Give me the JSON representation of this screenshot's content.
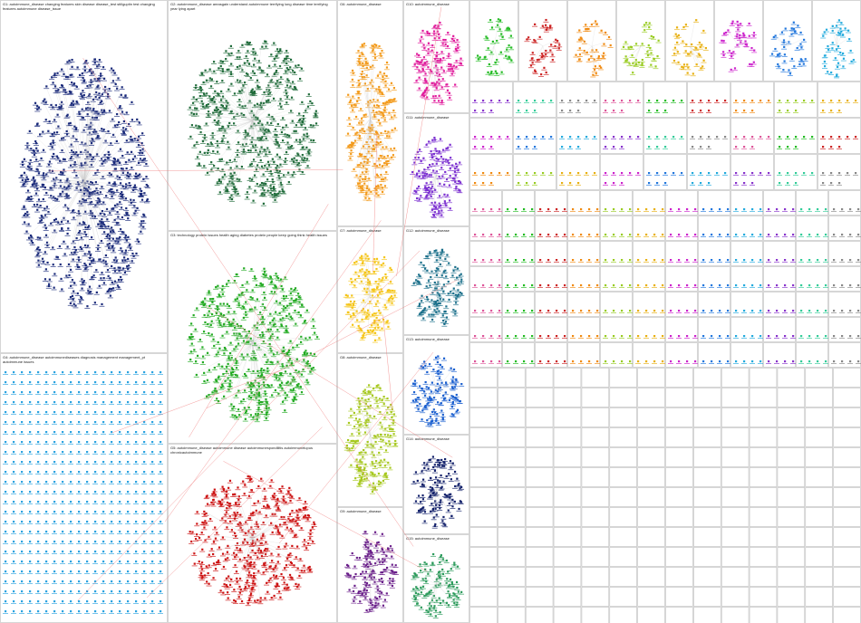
{
  "groups": [
    {
      "label": "G1: autoimmune_disease changing features skin disease disease_test stillguptin test changing features autoimmune disease_issue",
      "color": "#1a2a7a"
    },
    {
      "label": "G2: autoimmune_disease areasgain understand autoimmune terrifying long disease time terrifying year lying apart",
      "color": "#1f6b3a"
    },
    {
      "label": "G3: technology protein issues health aging diabetes protein people keep going think health issues",
      "color": "#22aa22"
    },
    {
      "label": "G4: autoimmune_disease autoimmunediseases diagnosis management management_pt autoimmune issues",
      "color": "#2ba3e0"
    },
    {
      "label": "G5: autoimmune_disease autoimmune disease autoimmunespondilitis autoimmunelupus chronicautoimmune",
      "color": "#cc1111"
    },
    {
      "label": "G6: autoimmune_disease",
      "color": "#f39a1a"
    },
    {
      "label": "G7: autoimmune_disease",
      "color": "#f5c518"
    },
    {
      "label": "G8: autoimmune_disease",
      "color": "#a6c81e"
    },
    {
      "label": "G9: autoimmune_disease",
      "color": "#6a1f8a"
    },
    {
      "label": "G10: autoimmune_disease",
      "color": "#e01a9b"
    },
    {
      "label": "G11: autoimmune_disease",
      "color": "#7b2fd0"
    },
    {
      "label": "G12: autoimmune_disease",
      "color": "#1a6f8a"
    },
    {
      "label": "G13: autoimmune_disease",
      "color": "#1a5fcf"
    },
    {
      "label": "G14: autoimmune_disease",
      "color": "#12206a"
    },
    {
      "label": "G15: autoimmune_disease",
      "color": "#2a9a5a"
    }
  ],
  "small_group_colors": [
    "#22bb22",
    "#cc2222",
    "#f08a10",
    "#99cc22",
    "#e8b010",
    "#cc22cc",
    "#2277dd",
    "#22aadd",
    "#8833cc",
    "#33cc99",
    "#888888",
    "#dd5599"
  ]
}
